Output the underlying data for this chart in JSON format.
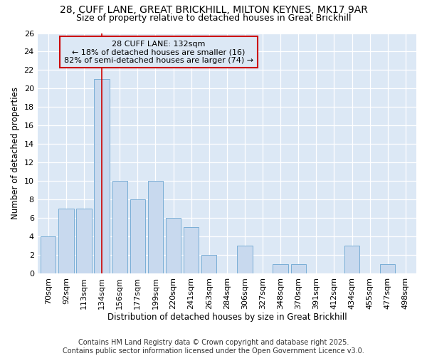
{
  "title1": "28, CUFF LANE, GREAT BRICKHILL, MILTON KEYNES, MK17 9AR",
  "title2": "Size of property relative to detached houses in Great Brickhill",
  "xlabel": "Distribution of detached houses by size in Great Brickhill",
  "ylabel": "Number of detached properties",
  "categories": [
    "70sqm",
    "92sqm",
    "113sqm",
    "134sqm",
    "156sqm",
    "177sqm",
    "199sqm",
    "220sqm",
    "241sqm",
    "263sqm",
    "284sqm",
    "306sqm",
    "327sqm",
    "348sqm",
    "370sqm",
    "391sqm",
    "412sqm",
    "434sqm",
    "455sqm",
    "477sqm",
    "498sqm"
  ],
  "values": [
    4,
    7,
    7,
    21,
    10,
    8,
    10,
    6,
    5,
    2,
    0,
    3,
    0,
    1,
    1,
    0,
    0,
    3,
    0,
    1,
    0
  ],
  "bar_color": "#c8d9ee",
  "bar_edge_color": "#7aaed6",
  "vline_x_index": 3,
  "vline_color": "#cc0000",
  "annotation_line1": "28 CUFF LANE: 132sqm",
  "annotation_line2": "← 18% of detached houses are smaller (16)",
  "annotation_line3": "82% of semi-detached houses are larger (74) →",
  "annotation_box_color": "#cc0000",
  "ylim": [
    0,
    26
  ],
  "yticks": [
    0,
    2,
    4,
    6,
    8,
    10,
    12,
    14,
    16,
    18,
    20,
    22,
    24,
    26
  ],
  "plot_bg_color": "#dce8f5",
  "fig_bg_color": "#ffffff",
  "footer": "Contains HM Land Registry data © Crown copyright and database right 2025.\nContains public sector information licensed under the Open Government Licence v3.0.",
  "title_fontsize": 10,
  "subtitle_fontsize": 9,
  "axis_label_fontsize": 8.5,
  "tick_fontsize": 8,
  "annotation_fontsize": 8,
  "footer_fontsize": 7
}
